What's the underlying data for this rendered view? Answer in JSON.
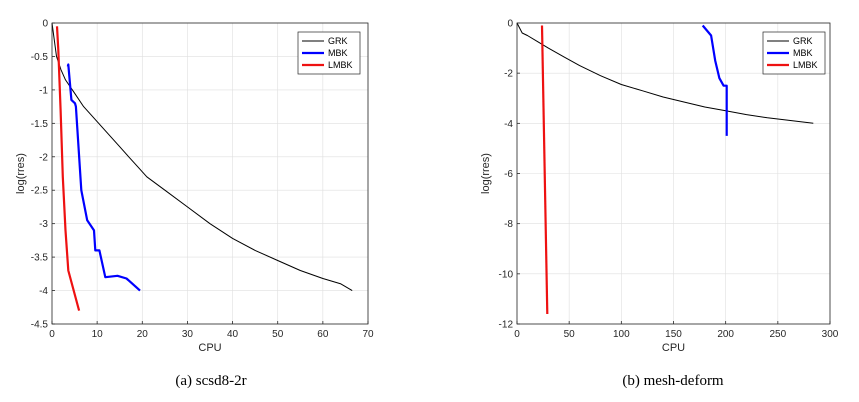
{
  "chart_data": [
    {
      "type": "line",
      "caption": "(a) scsd8-2r",
      "xlabel": "CPU",
      "ylabel": "log(rres)",
      "xlim": [
        0,
        70
      ],
      "ylim": [
        -4.5,
        0
      ],
      "xticks": [
        0,
        10,
        20,
        30,
        40,
        50,
        60,
        70
      ],
      "xtick_labels": [
        "0",
        "10",
        "20",
        "30",
        "40",
        "50",
        "60",
        "70"
      ],
      "yticks": [
        0,
        -0.5,
        -1,
        -1.5,
        -2,
        -2.5,
        -3,
        -3.5,
        -4,
        -4.5
      ],
      "ytick_labels": [
        "0",
        "-0.5",
        "-1",
        "-1.5",
        "-2",
        "-2.5",
        "-3",
        "-3.5",
        "-4",
        "-4.5"
      ],
      "grid": true,
      "legend_position": "top-right",
      "series": [
        {
          "name": "GRK",
          "color": "#000000",
          "width": 1,
          "x": [
            0,
            1,
            2,
            3,
            5,
            7,
            9,
            11,
            13,
            15,
            17,
            19,
            21,
            25,
            30,
            35,
            40,
            45,
            50,
            55,
            60,
            64,
            66.5
          ],
          "y": [
            0,
            -0.5,
            -0.7,
            -0.85,
            -1.05,
            -1.25,
            -1.4,
            -1.55,
            -1.7,
            -1.85,
            -2.0,
            -2.15,
            -2.3,
            -2.5,
            -2.75,
            -3.0,
            -3.22,
            -3.4,
            -3.55,
            -3.7,
            -3.82,
            -3.9,
            -4.0
          ]
        },
        {
          "name": "MBK",
          "color": "#0000ff",
          "width": 2.2,
          "x": [
            3.5,
            3.6,
            4.3,
            5.1,
            5.3,
            6.5,
            7.8,
            9.3,
            9.6,
            10.5,
            11.8,
            14.5,
            16.5,
            19.5
          ],
          "y": [
            -0.65,
            -0.62,
            -1.15,
            -1.2,
            -1.25,
            -2.5,
            -2.95,
            -3.1,
            -3.4,
            -3.4,
            -3.8,
            -3.78,
            -3.82,
            -4.0
          ]
        },
        {
          "name": "LMBK",
          "color": "#ee1111",
          "width": 2.2,
          "x": [
            1.1,
            1.4,
            1.9,
            2.4,
            3.0,
            3.6,
            6.0
          ],
          "y": [
            -0.05,
            -0.4,
            -1.3,
            -2.3,
            -3.1,
            -3.7,
            -4.3
          ]
        }
      ]
    },
    {
      "type": "line",
      "caption": "(b) mesh-deform",
      "xlabel": "CPU",
      "ylabel": "log(rres)",
      "xlim": [
        0,
        300
      ],
      "ylim": [
        -12,
        0
      ],
      "xticks": [
        0,
        50,
        100,
        150,
        200,
        250,
        300
      ],
      "xtick_labels": [
        "0",
        "50",
        "100",
        "150",
        "200",
        "250",
        "300"
      ],
      "yticks": [
        0,
        -2,
        -4,
        -6,
        -8,
        -10,
        -12
      ],
      "ytick_labels": [
        "0",
        "-2",
        "-4",
        "-6",
        "-8",
        "-10",
        "-12"
      ],
      "grid": true,
      "legend_position": "top-right",
      "series": [
        {
          "name": "GRK",
          "color": "#000000",
          "width": 1,
          "x": [
            0,
            5,
            10,
            20,
            30,
            45,
            60,
            80,
            100,
            120,
            140,
            160,
            180,
            200,
            220,
            240,
            260,
            284
          ],
          "y": [
            0,
            -0.4,
            -0.5,
            -0.75,
            -1.0,
            -1.35,
            -1.7,
            -2.1,
            -2.45,
            -2.7,
            -2.95,
            -3.15,
            -3.35,
            -3.5,
            -3.65,
            -3.78,
            -3.88,
            -4.0
          ]
        },
        {
          "name": "MBK",
          "color": "#0000ff",
          "width": 2.2,
          "x": [
            178,
            182,
            186,
            190,
            194,
            198,
            201,
            201
          ],
          "y": [
            -0.1,
            -0.3,
            -0.5,
            -1.5,
            -2.2,
            -2.5,
            -2.5,
            -4.5
          ]
        },
        {
          "name": "LMBK",
          "color": "#ee1111",
          "width": 2.2,
          "x": [
            24,
            29
          ],
          "y": [
            -0.1,
            -11.6
          ]
        }
      ]
    }
  ]
}
